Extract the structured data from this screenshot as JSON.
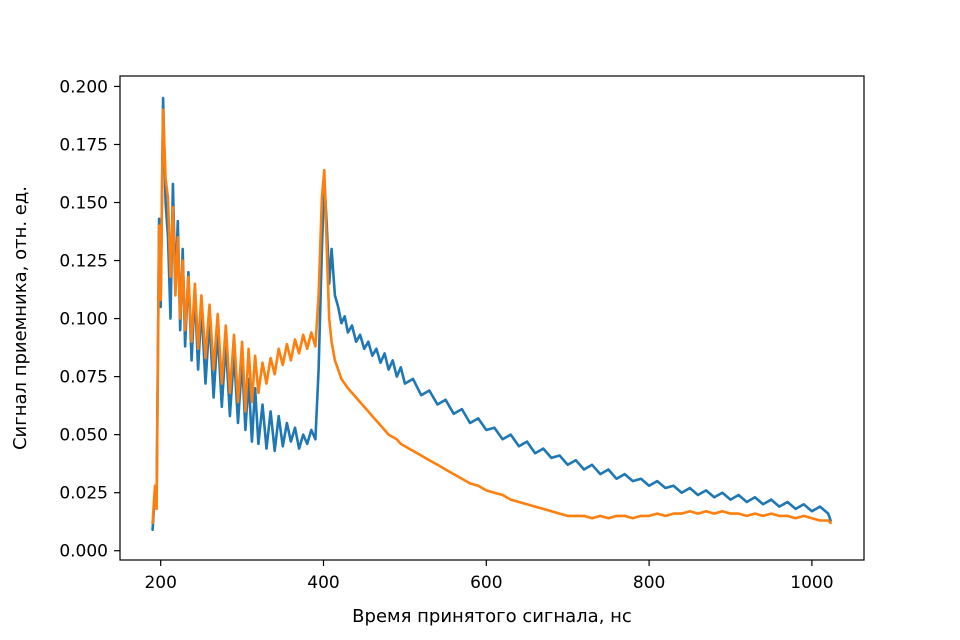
{
  "chart_data": {
    "type": "line",
    "title": "",
    "xlabel": "Время принятого сигнала, нс",
    "ylabel": "Сигнал приемника, отн. ед.",
    "xlim": [
      150,
      1064
    ],
    "ylim": [
      -0.004,
      0.2045
    ],
    "xticks": [
      200,
      400,
      600,
      800,
      1000
    ],
    "yticks": [
      0.0,
      0.025,
      0.05,
      0.075,
      0.1,
      0.125,
      0.15,
      0.175,
      0.2
    ],
    "xtick_labels": [
      "200",
      "400",
      "600",
      "800",
      "1000"
    ],
    "ytick_labels": [
      "0.000",
      "0.025",
      "0.050",
      "0.075",
      "0.100",
      "0.125",
      "0.150",
      "0.175",
      "0.200"
    ],
    "grid": false,
    "legend": "none",
    "series": [
      {
        "color": "#1f77b4",
        "points": [
          [
            190,
            0.009
          ],
          [
            193,
            0.026
          ],
          [
            195,
            0.022
          ],
          [
            198,
            0.143
          ],
          [
            200,
            0.105
          ],
          [
            203,
            0.195
          ],
          [
            206,
            0.15
          ],
          [
            209,
            0.135
          ],
          [
            212,
            0.1
          ],
          [
            215,
            0.158
          ],
          [
            218,
            0.112
          ],
          [
            221,
            0.142
          ],
          [
            224,
            0.095
          ],
          [
            227,
            0.13
          ],
          [
            230,
            0.088
          ],
          [
            234,
            0.12
          ],
          [
            238,
            0.082
          ],
          [
            242,
            0.112
          ],
          [
            246,
            0.078
          ],
          [
            250,
            0.105
          ],
          [
            255,
            0.072
          ],
          [
            260,
            0.1
          ],
          [
            265,
            0.066
          ],
          [
            270,
            0.095
          ],
          [
            275,
            0.062
          ],
          [
            280,
            0.09
          ],
          [
            285,
            0.058
          ],
          [
            290,
            0.085
          ],
          [
            295,
            0.055
          ],
          [
            300,
            0.082
          ],
          [
            304,
            0.052
          ],
          [
            308,
            0.074
          ],
          [
            312,
            0.047
          ],
          [
            316,
            0.07
          ],
          [
            320,
            0.046
          ],
          [
            325,
            0.063
          ],
          [
            330,
            0.044
          ],
          [
            335,
            0.06
          ],
          [
            340,
            0.043
          ],
          [
            345,
            0.058
          ],
          [
            350,
            0.045
          ],
          [
            355,
            0.055
          ],
          [
            360,
            0.047
          ],
          [
            365,
            0.053
          ],
          [
            370,
            0.044
          ],
          [
            375,
            0.05
          ],
          [
            380,
            0.046
          ],
          [
            385,
            0.052
          ],
          [
            390,
            0.048
          ],
          [
            394,
            0.078
          ],
          [
            398,
            0.13
          ],
          [
            401,
            0.16
          ],
          [
            404,
            0.14
          ],
          [
            407,
            0.115
          ],
          [
            410,
            0.13
          ],
          [
            414,
            0.11
          ],
          [
            418,
            0.105
          ],
          [
            422,
            0.098
          ],
          [
            426,
            0.101
          ],
          [
            430,
            0.094
          ],
          [
            435,
            0.097
          ],
          [
            440,
            0.09
          ],
          [
            445,
            0.093
          ],
          [
            450,
            0.087
          ],
          [
            455,
            0.09
          ],
          [
            460,
            0.084
          ],
          [
            465,
            0.087
          ],
          [
            470,
            0.081
          ],
          [
            475,
            0.085
          ],
          [
            480,
            0.078
          ],
          [
            485,
            0.082
          ],
          [
            490,
            0.075
          ],
          [
            495,
            0.079
          ],
          [
            500,
            0.072
          ],
          [
            510,
            0.074
          ],
          [
            520,
            0.067
          ],
          [
            530,
            0.069
          ],
          [
            540,
            0.063
          ],
          [
            550,
            0.065
          ],
          [
            560,
            0.059
          ],
          [
            570,
            0.061
          ],
          [
            580,
            0.055
          ],
          [
            590,
            0.057
          ],
          [
            600,
            0.052
          ],
          [
            610,
            0.053
          ],
          [
            620,
            0.048
          ],
          [
            630,
            0.05
          ],
          [
            640,
            0.045
          ],
          [
            650,
            0.047
          ],
          [
            660,
            0.042
          ],
          [
            670,
            0.044
          ],
          [
            680,
            0.04
          ],
          [
            690,
            0.041
          ],
          [
            700,
            0.037
          ],
          [
            710,
            0.039
          ],
          [
            720,
            0.035
          ],
          [
            730,
            0.037
          ],
          [
            740,
            0.033
          ],
          [
            750,
            0.035
          ],
          [
            760,
            0.031
          ],
          [
            770,
            0.033
          ],
          [
            780,
            0.03
          ],
          [
            790,
            0.031
          ],
          [
            800,
            0.028
          ],
          [
            810,
            0.03
          ],
          [
            820,
            0.027
          ],
          [
            830,
            0.028
          ],
          [
            840,
            0.025
          ],
          [
            850,
            0.027
          ],
          [
            860,
            0.024
          ],
          [
            870,
            0.026
          ],
          [
            880,
            0.023
          ],
          [
            890,
            0.025
          ],
          [
            900,
            0.022
          ],
          [
            910,
            0.024
          ],
          [
            920,
            0.021
          ],
          [
            930,
            0.023
          ],
          [
            940,
            0.02
          ],
          [
            950,
            0.022
          ],
          [
            960,
            0.019
          ],
          [
            970,
            0.021
          ],
          [
            980,
            0.018
          ],
          [
            990,
            0.02
          ],
          [
            1000,
            0.017
          ],
          [
            1010,
            0.019
          ],
          [
            1020,
            0.016
          ],
          [
            1023,
            0.013
          ]
        ]
      },
      {
        "color": "#ff7f0e",
        "points": [
          [
            190,
            0.012
          ],
          [
            193,
            0.028
          ],
          [
            195,
            0.018
          ],
          [
            198,
            0.14
          ],
          [
            200,
            0.108
          ],
          [
            203,
            0.19
          ],
          [
            206,
            0.16
          ],
          [
            209,
            0.152
          ],
          [
            212,
            0.118
          ],
          [
            215,
            0.148
          ],
          [
            218,
            0.11
          ],
          [
            221,
            0.135
          ],
          [
            224,
            0.1
          ],
          [
            227,
            0.125
          ],
          [
            230,
            0.095
          ],
          [
            234,
            0.118
          ],
          [
            238,
            0.09
          ],
          [
            242,
            0.115
          ],
          [
            246,
            0.087
          ],
          [
            250,
            0.11
          ],
          [
            255,
            0.083
          ],
          [
            260,
            0.106
          ],
          [
            265,
            0.078
          ],
          [
            270,
            0.102
          ],
          [
            275,
            0.072
          ],
          [
            280,
            0.097
          ],
          [
            285,
            0.068
          ],
          [
            290,
            0.093
          ],
          [
            295,
            0.064
          ],
          [
            300,
            0.09
          ],
          [
            304,
            0.06
          ],
          [
            308,
            0.087
          ],
          [
            312,
            0.064
          ],
          [
            316,
            0.084
          ],
          [
            320,
            0.068
          ],
          [
            325,
            0.081
          ],
          [
            330,
            0.072
          ],
          [
            335,
            0.083
          ],
          [
            340,
            0.076
          ],
          [
            345,
            0.087
          ],
          [
            350,
            0.08
          ],
          [
            355,
            0.089
          ],
          [
            360,
            0.082
          ],
          [
            365,
            0.091
          ],
          [
            370,
            0.085
          ],
          [
            375,
            0.093
          ],
          [
            380,
            0.087
          ],
          [
            385,
            0.094
          ],
          [
            390,
            0.088
          ],
          [
            394,
            0.11
          ],
          [
            398,
            0.152
          ],
          [
            401,
            0.164
          ],
          [
            404,
            0.13
          ],
          [
            407,
            0.1
          ],
          [
            410,
            0.09
          ],
          [
            414,
            0.082
          ],
          [
            418,
            0.078
          ],
          [
            422,
            0.074
          ],
          [
            426,
            0.072
          ],
          [
            430,
            0.07
          ],
          [
            435,
            0.068
          ],
          [
            440,
            0.066
          ],
          [
            445,
            0.064
          ],
          [
            450,
            0.062
          ],
          [
            455,
            0.06
          ],
          [
            460,
            0.058
          ],
          [
            465,
            0.056
          ],
          [
            470,
            0.054
          ],
          [
            475,
            0.052
          ],
          [
            480,
            0.05
          ],
          [
            485,
            0.049
          ],
          [
            490,
            0.048
          ],
          [
            495,
            0.046
          ],
          [
            500,
            0.045
          ],
          [
            510,
            0.043
          ],
          [
            520,
            0.041
          ],
          [
            530,
            0.039
          ],
          [
            540,
            0.037
          ],
          [
            550,
            0.035
          ],
          [
            560,
            0.033
          ],
          [
            570,
            0.031
          ],
          [
            580,
            0.029
          ],
          [
            590,
            0.028
          ],
          [
            600,
            0.026
          ],
          [
            610,
            0.025
          ],
          [
            620,
            0.024
          ],
          [
            630,
            0.022
          ],
          [
            640,
            0.021
          ],
          [
            650,
            0.02
          ],
          [
            660,
            0.019
          ],
          [
            670,
            0.018
          ],
          [
            680,
            0.017
          ],
          [
            690,
            0.016
          ],
          [
            700,
            0.015
          ],
          [
            710,
            0.015
          ],
          [
            720,
            0.015
          ],
          [
            730,
            0.014
          ],
          [
            740,
            0.015
          ],
          [
            750,
            0.014
          ],
          [
            760,
            0.015
          ],
          [
            770,
            0.015
          ],
          [
            780,
            0.014
          ],
          [
            790,
            0.015
          ],
          [
            800,
            0.015
          ],
          [
            810,
            0.016
          ],
          [
            820,
            0.015
          ],
          [
            830,
            0.016
          ],
          [
            840,
            0.016
          ],
          [
            850,
            0.017
          ],
          [
            860,
            0.016
          ],
          [
            870,
            0.017
          ],
          [
            880,
            0.016
          ],
          [
            890,
            0.017
          ],
          [
            900,
            0.016
          ],
          [
            910,
            0.016
          ],
          [
            920,
            0.015
          ],
          [
            930,
            0.016
          ],
          [
            940,
            0.015
          ],
          [
            950,
            0.016
          ],
          [
            960,
            0.015
          ],
          [
            970,
            0.015
          ],
          [
            980,
            0.014
          ],
          [
            990,
            0.015
          ],
          [
            1000,
            0.014
          ],
          [
            1010,
            0.013
          ],
          [
            1020,
            0.013
          ],
          [
            1023,
            0.012
          ]
        ]
      }
    ]
  }
}
